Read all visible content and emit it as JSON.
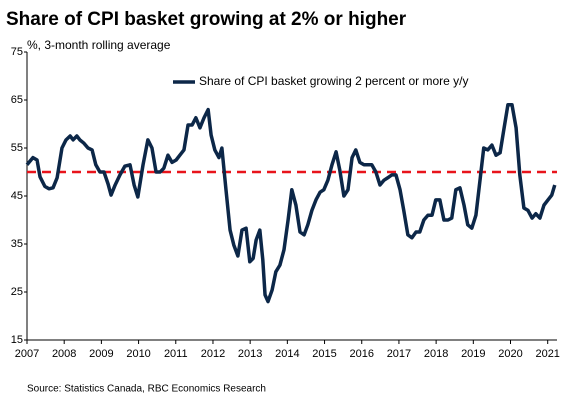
{
  "chart_data": {
    "type": "line",
    "title": "Share of CPI basket growing at 2% or higher",
    "subtitle": "%, 3-month rolling average",
    "source": "Source: Statistics Canada, RBC Economics Research",
    "x": [
      2007.0,
      2007.16,
      2007.27,
      2007.35,
      2007.48,
      2007.59,
      2007.7,
      2007.81,
      2007.94,
      2008.05,
      2008.16,
      2008.24,
      2008.34,
      2008.42,
      2008.53,
      2008.64,
      2008.75,
      2008.85,
      2008.96,
      2009.07,
      2009.18,
      2009.26,
      2009.37,
      2009.5,
      2009.63,
      2009.77,
      2009.88,
      2009.98,
      2010.12,
      2010.25,
      2010.36,
      2010.47,
      2010.58,
      2010.68,
      2010.79,
      2010.9,
      2011.01,
      2011.11,
      2011.22,
      2011.33,
      2011.44,
      2011.54,
      2011.65,
      2011.76,
      2011.87,
      2011.95,
      2012.05,
      2012.16,
      2012.24,
      2012.35,
      2012.46,
      2012.56,
      2012.67,
      2012.78,
      2012.89,
      2012.99,
      2013.08,
      2013.16,
      2013.26,
      2013.34,
      2013.4,
      2013.48,
      2013.59,
      2013.69,
      2013.8,
      2013.91,
      2014.02,
      2014.12,
      2014.23,
      2014.34,
      2014.45,
      2014.55,
      2014.66,
      2014.77,
      2014.88,
      2014.98,
      2015.09,
      2015.2,
      2015.31,
      2015.41,
      2015.52,
      2015.63,
      2015.74,
      2015.84,
      2015.95,
      2016.06,
      2016.17,
      2016.27,
      2016.38,
      2016.49,
      2016.6,
      2016.7,
      2016.81,
      2016.92,
      2017.03,
      2017.13,
      2017.24,
      2017.35,
      2017.46,
      2017.56,
      2017.67,
      2017.78,
      2017.89,
      2017.99,
      2018.1,
      2018.21,
      2018.32,
      2018.42,
      2018.53,
      2018.64,
      2018.75,
      2018.85,
      2018.96,
      2019.07,
      2019.18,
      2019.28,
      2019.39,
      2019.5,
      2019.61,
      2019.72,
      2019.82,
      2019.93,
      2020.04,
      2020.15,
      2020.25,
      2020.36,
      2020.47,
      2020.58,
      2020.68,
      2020.79,
      2020.9,
      2021.01,
      2021.11,
      2021.19
    ],
    "series": [
      {
        "name": "Share of CPI basket growing 2 percent or more y/y",
        "color": "#0c2748",
        "values": [
          51.5,
          53,
          52.5,
          49,
          47,
          46.5,
          46.7,
          48.8,
          55,
          56.7,
          57.5,
          56.7,
          57.5,
          56.7,
          56,
          55,
          54.6,
          51.5,
          50,
          50,
          47.5,
          45.2,
          47.3,
          49.4,
          51.2,
          51.5,
          47.3,
          44.8,
          51.5,
          56.7,
          55,
          50,
          50,
          50.8,
          53.5,
          52,
          52.5,
          53.5,
          54.6,
          59.8,
          59.8,
          61.3,
          59.2,
          61.3,
          63,
          57.7,
          54.6,
          53,
          55,
          46.3,
          37.9,
          34.8,
          32.5,
          37.9,
          38.3,
          31.3,
          32,
          35.8,
          37.9,
          31.7,
          24.4,
          23,
          25.4,
          29.2,
          30.6,
          33.8,
          40,
          46.3,
          43.1,
          37.5,
          36.9,
          39,
          42,
          44.2,
          45.8,
          46.3,
          48.3,
          51.5,
          54.2,
          50.4,
          45,
          46.3,
          53,
          54.6,
          52,
          51.5,
          51.5,
          51.5,
          50,
          47.3,
          48.3,
          48.8,
          49.4,
          49.4,
          46.3,
          42,
          36.9,
          36.3,
          37.5,
          37.5,
          40,
          41,
          41,
          44.2,
          44.2,
          40,
          40,
          40.4,
          46.3,
          46.7,
          43.1,
          39,
          38.3,
          41,
          48.3,
          55,
          54.6,
          55.6,
          53.5,
          54,
          58.8,
          64,
          64,
          59.2,
          49.4,
          42.5,
          42,
          40.4,
          41.3,
          40.4,
          43.1,
          44.2,
          45.2,
          47.3
        ]
      }
    ],
    "xlim": [
      2007,
      2021.25
    ],
    "xticks": [
      2007,
      2008,
      2009,
      2010,
      2011,
      2012,
      2013,
      2014,
      2015,
      2016,
      2017,
      2018,
      2019,
      2020,
      2021
    ],
    "ylim": [
      15,
      75
    ],
    "yticks": [
      15,
      25,
      35,
      45,
      55,
      65,
      75
    ],
    "reference_line": {
      "value": 50,
      "color": "#e8141b"
    },
    "legend": "upper right",
    "grid": false
  }
}
